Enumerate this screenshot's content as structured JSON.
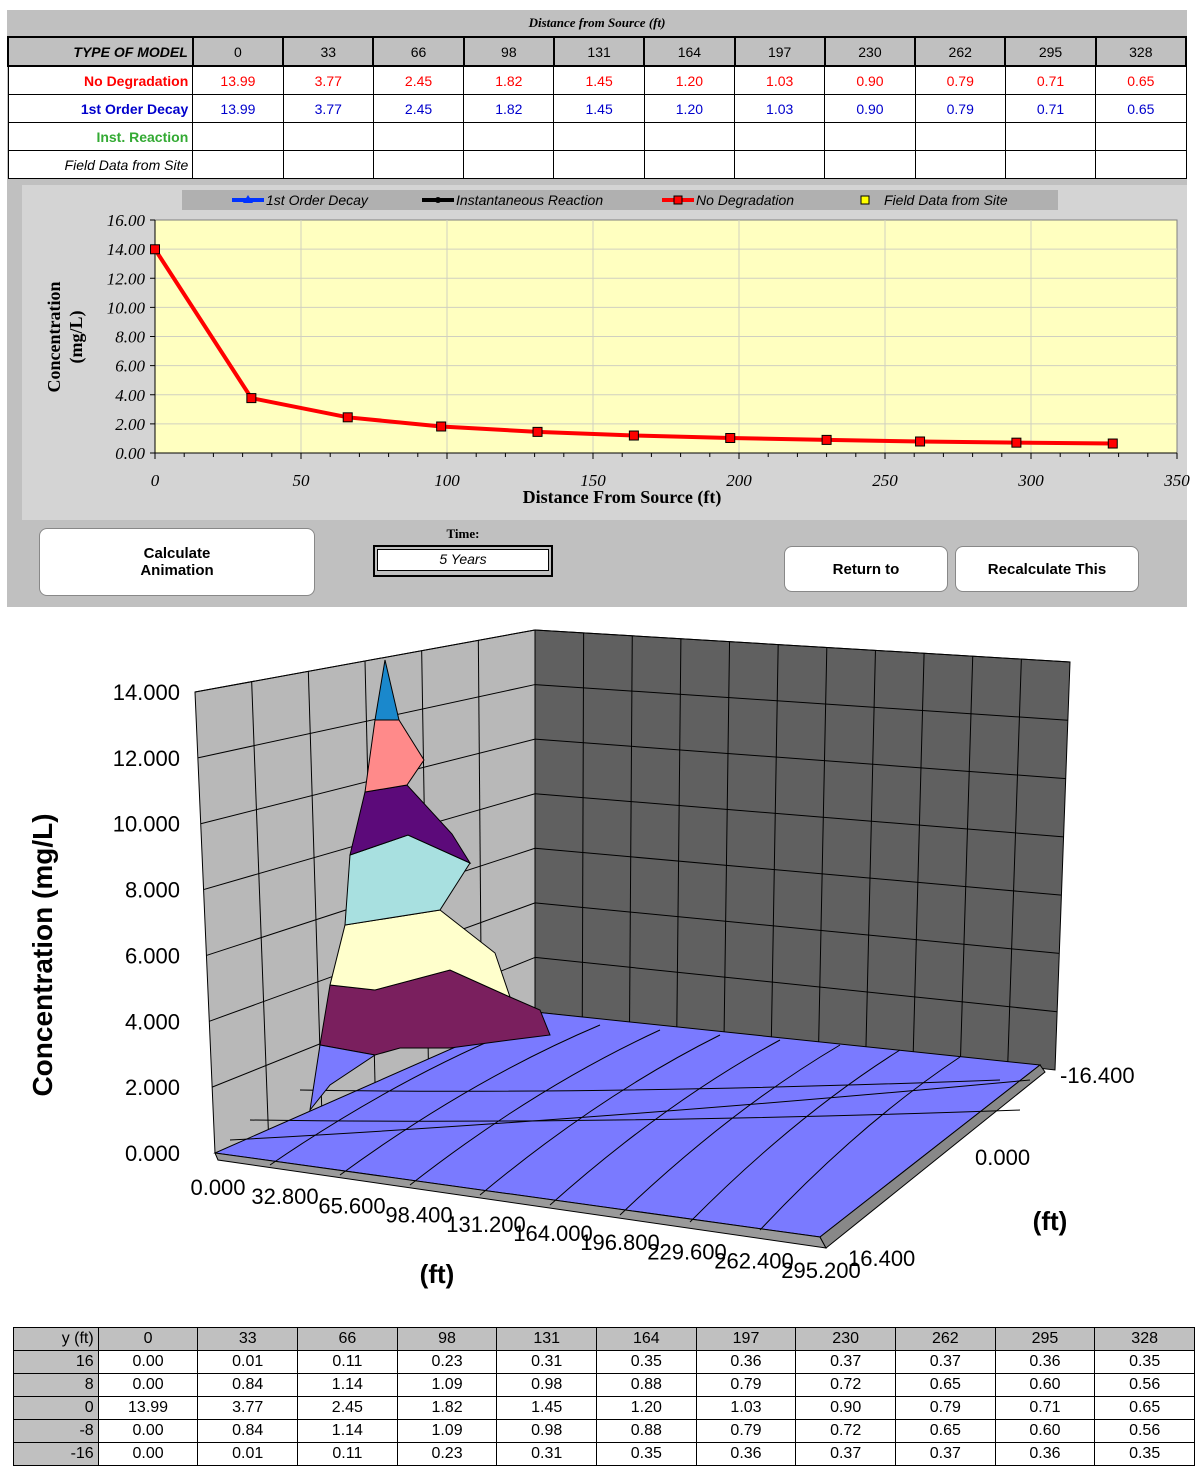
{
  "summary": {
    "distance_header": "Distance from Source (ft)",
    "type_label": "TYPE OF MODEL",
    "distances": [
      "0",
      "33",
      "66",
      "98",
      "131",
      "164",
      "197",
      "230",
      "262",
      "295",
      "328"
    ],
    "rows": [
      {
        "label": "No Degradation",
        "color": "#ff0000",
        "values": [
          "13.99",
          "3.77",
          "2.45",
          "1.82",
          "1.45",
          "1.20",
          "1.03",
          "0.90",
          "0.79",
          "0.71",
          "0.65"
        ]
      },
      {
        "label": "1st Order Decay",
        "color": "#0000cc",
        "values": [
          "13.99",
          "3.77",
          "2.45",
          "1.82",
          "1.45",
          "1.20",
          "1.03",
          "0.90",
          "0.79",
          "0.71",
          "0.65"
        ]
      },
      {
        "label": "Inst. Reaction",
        "color": "#33aa33",
        "values": [
          "",
          "",
          "",
          "",
          "",
          "",
          "",
          "",
          "",
          "",
          ""
        ]
      },
      {
        "label": "Field Data from Site",
        "color": "#000000",
        "values": [
          "",
          "",
          "",
          "",
          "",
          "",
          "",
          "",
          "",
          "",
          ""
        ]
      }
    ]
  },
  "chart_data": [
    {
      "type": "line",
      "legend": [
        "1st Order Decay",
        "Instantaneous Reaction",
        "No Degradation",
        "Field Data from Site"
      ],
      "xlabel": "Distance From Source (ft)",
      "ylabel": "Concentration (mg/L)",
      "xlim": [
        0,
        350
      ],
      "ylim": [
        0,
        16
      ],
      "xticks": [
        "0",
        "50",
        "100",
        "150",
        "200",
        "250",
        "300",
        "350"
      ],
      "yticks": [
        "0.00",
        "2.00",
        "4.00",
        "6.00",
        "8.00",
        "10.00",
        "12.00",
        "14.00",
        "16.00"
      ],
      "x": [
        0,
        33,
        66,
        98,
        131,
        164,
        197,
        230,
        262,
        295,
        328
      ],
      "series": [
        {
          "name": "No Degradation",
          "color": "#ff0000",
          "values": [
            13.99,
            3.77,
            2.45,
            1.82,
            1.45,
            1.2,
            1.03,
            0.9,
            0.79,
            0.71,
            0.65
          ]
        }
      ]
    },
    {
      "type": "surface",
      "ylabel": "Concentration (mg/L)",
      "xlabel": "(ft)",
      "zlabel": "(ft)",
      "ylim": [
        0,
        14
      ],
      "yticks": [
        "0.000",
        "2.000",
        "4.000",
        "6.000",
        "8.000",
        "10.000",
        "12.000",
        "14.000"
      ],
      "xticks": [
        "0.000",
        "32.800",
        "65.600",
        "98.400",
        "131.200",
        "164.000",
        "196.800",
        "229.600",
        "262.400",
        "295.200"
      ],
      "zticks": [
        "-16.400",
        "0.000",
        "16.400"
      ]
    }
  ],
  "time": {
    "label": "Time:",
    "value": "5 Years"
  },
  "buttons": {
    "calc_animation": "Calculate\nAnimation",
    "return_to": "Return to",
    "recalculate": "Recalculate This"
  },
  "grid": {
    "y_header": "y (ft)",
    "columns": [
      "0",
      "33",
      "66",
      "98",
      "131",
      "164",
      "197",
      "230",
      "262",
      "295",
      "328"
    ],
    "rows": [
      {
        "y": "16",
        "values": [
          "0.00",
          "0.01",
          "0.11",
          "0.23",
          "0.31",
          "0.35",
          "0.36",
          "0.37",
          "0.37",
          "0.36",
          "0.35"
        ]
      },
      {
        "y": "8",
        "values": [
          "0.00",
          "0.84",
          "1.14",
          "1.09",
          "0.98",
          "0.88",
          "0.79",
          "0.72",
          "0.65",
          "0.60",
          "0.56"
        ]
      },
      {
        "y": "0",
        "values": [
          "13.99",
          "3.77",
          "2.45",
          "1.82",
          "1.45",
          "1.20",
          "1.03",
          "0.90",
          "0.79",
          "0.71",
          "0.65"
        ]
      },
      {
        "y": "-8",
        "values": [
          "0.00",
          "0.84",
          "1.14",
          "1.09",
          "0.98",
          "0.88",
          "0.79",
          "0.72",
          "0.65",
          "0.60",
          "0.56"
        ]
      },
      {
        "y": "-16",
        "values": [
          "0.00",
          "0.01",
          "0.11",
          "0.23",
          "0.31",
          "0.35",
          "0.36",
          "0.37",
          "0.37",
          "0.36",
          "0.35"
        ]
      }
    ]
  }
}
